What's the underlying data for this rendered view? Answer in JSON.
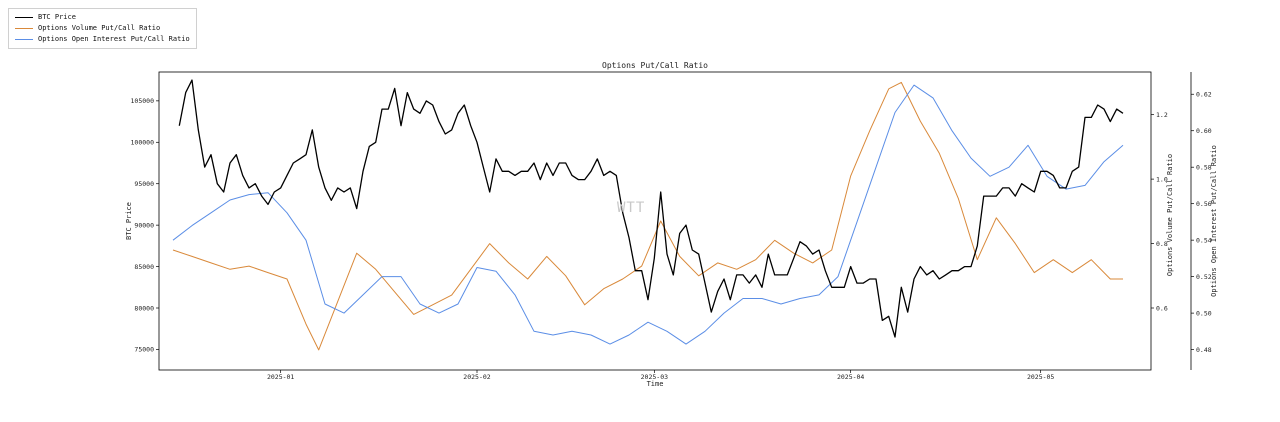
{
  "chart_data": {
    "type": "line",
    "title": "Options Put/Call Ratio",
    "xlabel": "Time",
    "x_ticks": [
      "2025-01",
      "2025-02",
      "2025-03",
      "2025-04",
      "2025-05"
    ],
    "x_range": [
      "2024-12-15",
      "2025-05-14"
    ],
    "watermark": "WTT",
    "legend": {
      "placement": "top-left outside",
      "entries": [
        "BTC Price",
        "Options Volume Put/Call Ratio",
        "Options Open Interest Put/Call Ratio"
      ]
    },
    "axes": {
      "left": {
        "label": "BTC Price",
        "ticks": [
          75000,
          80000,
          85000,
          90000,
          95000,
          100000,
          105000
        ],
        "range": [
          73000,
          108000
        ]
      },
      "right1": {
        "label": "Options Volume Put/Call Ratio",
        "ticks": [
          0.6,
          0.8,
          1.0,
          1.2
        ],
        "range": [
          0.42,
          1.32
        ]
      },
      "right2": {
        "label": "Options Open Interest Put/Call Ratio",
        "ticks": [
          "0.48",
          "0.50",
          "0.52",
          "0.54",
          "0.56",
          "0.58",
          "0.60",
          "0.62"
        ],
        "range": [
          0.471,
          0.63
        ]
      }
    },
    "series": [
      {
        "name": "BTC Price",
        "color": "#000000",
        "axis": "left",
        "points": [
          [
            "2024-12-16",
            102000
          ],
          [
            "2024-12-17",
            106000
          ],
          [
            "2024-12-18",
            107500
          ],
          [
            "2024-12-19",
            101500
          ],
          [
            "2024-12-20",
            97000
          ],
          [
            "2024-12-21",
            98500
          ],
          [
            "2024-12-22",
            95000
          ],
          [
            "2024-12-23",
            94000
          ],
          [
            "2024-12-24",
            97500
          ],
          [
            "2024-12-25",
            98500
          ],
          [
            "2024-12-26",
            96000
          ],
          [
            "2024-12-27",
            94500
          ],
          [
            "2024-12-28",
            95000
          ],
          [
            "2024-12-29",
            93500
          ],
          [
            "2024-12-30",
            92500
          ],
          [
            "2024-12-31",
            94000
          ],
          [
            "2025-01-01",
            94500
          ],
          [
            "2025-01-02",
            96000
          ],
          [
            "2025-01-03",
            97500
          ],
          [
            "2025-01-04",
            98000
          ],
          [
            "2025-01-05",
            98500
          ],
          [
            "2025-01-06",
            101500
          ],
          [
            "2025-01-07",
            97000
          ],
          [
            "2025-01-08",
            94500
          ],
          [
            "2025-01-09",
            93000
          ],
          [
            "2025-01-10",
            94500
          ],
          [
            "2025-01-11",
            94000
          ],
          [
            "2025-01-12",
            94500
          ],
          [
            "2025-01-13",
            92000
          ],
          [
            "2025-01-14",
            96500
          ],
          [
            "2025-01-15",
            99500
          ],
          [
            "2025-01-16",
            100000
          ],
          [
            "2025-01-17",
            104000
          ],
          [
            "2025-01-18",
            104000
          ],
          [
            "2025-01-19",
            106500
          ],
          [
            "2025-01-20",
            102000
          ],
          [
            "2025-01-21",
            106000
          ],
          [
            "2025-01-22",
            104000
          ],
          [
            "2025-01-23",
            103500
          ],
          [
            "2025-01-24",
            105000
          ],
          [
            "2025-01-25",
            104500
          ],
          [
            "2025-01-26",
            102500
          ],
          [
            "2025-01-27",
            101000
          ],
          [
            "2025-01-28",
            101500
          ],
          [
            "2025-01-29",
            103500
          ],
          [
            "2025-01-30",
            104500
          ],
          [
            "2025-01-31",
            102000
          ],
          [
            "2025-02-01",
            100000
          ],
          [
            "2025-02-02",
            97000
          ],
          [
            "2025-02-03",
            94000
          ],
          [
            "2025-02-04",
            98000
          ],
          [
            "2025-02-05",
            96500
          ],
          [
            "2025-02-06",
            96500
          ],
          [
            "2025-02-07",
            96000
          ],
          [
            "2025-02-08",
            96500
          ],
          [
            "2025-02-09",
            96500
          ],
          [
            "2025-02-10",
            97500
          ],
          [
            "2025-02-11",
            95500
          ],
          [
            "2025-02-12",
            97500
          ],
          [
            "2025-02-13",
            96000
          ],
          [
            "2025-02-14",
            97500
          ],
          [
            "2025-02-15",
            97500
          ],
          [
            "2025-02-16",
            96000
          ],
          [
            "2025-02-17",
            95500
          ],
          [
            "2025-02-18",
            95500
          ],
          [
            "2025-02-19",
            96500
          ],
          [
            "2025-02-20",
            98000
          ],
          [
            "2025-02-21",
            96000
          ],
          [
            "2025-02-22",
            96500
          ],
          [
            "2025-02-23",
            96000
          ],
          [
            "2025-02-24",
            91500
          ],
          [
            "2025-02-25",
            88500
          ],
          [
            "2025-02-26",
            84500
          ],
          [
            "2025-02-27",
            84500
          ],
          [
            "2025-02-28",
            81000
          ],
          [
            "2025-03-01",
            86000
          ],
          [
            "2025-03-02",
            94000
          ],
          [
            "2025-03-03",
            86500
          ],
          [
            "2025-03-04",
            84000
          ],
          [
            "2025-03-05",
            89000
          ],
          [
            "2025-03-06",
            90000
          ],
          [
            "2025-03-07",
            87000
          ],
          [
            "2025-03-08",
            86500
          ],
          [
            "2025-03-09",
            83000
          ],
          [
            "2025-03-10",
            79500
          ],
          [
            "2025-03-11",
            82000
          ],
          [
            "2025-03-12",
            83500
          ],
          [
            "2025-03-13",
            81000
          ],
          [
            "2025-03-14",
            84000
          ],
          [
            "2025-03-15",
            84000
          ],
          [
            "2025-03-16",
            83000
          ],
          [
            "2025-03-17",
            84000
          ],
          [
            "2025-03-18",
            82500
          ],
          [
            "2025-03-19",
            86500
          ],
          [
            "2025-03-20",
            84000
          ],
          [
            "2025-03-21",
            84000
          ],
          [
            "2025-03-22",
            84000
          ],
          [
            "2025-03-23",
            86000
          ],
          [
            "2025-03-24",
            88000
          ],
          [
            "2025-03-25",
            87500
          ],
          [
            "2025-03-26",
            86500
          ],
          [
            "2025-03-27",
            87000
          ],
          [
            "2025-03-28",
            84500
          ],
          [
            "2025-03-29",
            82500
          ],
          [
            "2025-03-30",
            82500
          ],
          [
            "2025-03-31",
            82500
          ],
          [
            "2025-04-01",
            85000
          ],
          [
            "2025-04-02",
            83000
          ],
          [
            "2025-04-03",
            83000
          ],
          [
            "2025-04-04",
            83500
          ],
          [
            "2025-04-05",
            83500
          ],
          [
            "2025-04-06",
            78500
          ],
          [
            "2025-04-07",
            79000
          ],
          [
            "2025-04-08",
            76500
          ],
          [
            "2025-04-09",
            82500
          ],
          [
            "2025-04-10",
            79500
          ],
          [
            "2025-04-11",
            83500
          ],
          [
            "2025-04-12",
            85000
          ],
          [
            "2025-04-13",
            84000
          ],
          [
            "2025-04-14",
            84500
          ],
          [
            "2025-04-15",
            83500
          ],
          [
            "2025-04-16",
            84000
          ],
          [
            "2025-04-17",
            84500
          ],
          [
            "2025-04-18",
            84500
          ],
          [
            "2025-04-19",
            85000
          ],
          [
            "2025-04-20",
            85000
          ],
          [
            "2025-04-21",
            87500
          ],
          [
            "2025-04-22",
            93500
          ],
          [
            "2025-04-23",
            93500
          ],
          [
            "2025-04-24",
            93500
          ],
          [
            "2025-04-25",
            94500
          ],
          [
            "2025-04-26",
            94500
          ],
          [
            "2025-04-27",
            93500
          ],
          [
            "2025-04-28",
            95000
          ],
          [
            "2025-04-29",
            94500
          ],
          [
            "2025-04-30",
            94000
          ],
          [
            "2025-05-01",
            96500
          ],
          [
            "2025-05-02",
            96500
          ],
          [
            "2025-05-03",
            96000
          ],
          [
            "2025-05-04",
            94500
          ],
          [
            "2025-05-05",
            94500
          ],
          [
            "2025-05-06",
            96500
          ],
          [
            "2025-05-07",
            97000
          ],
          [
            "2025-05-08",
            103000
          ],
          [
            "2025-05-09",
            103000
          ],
          [
            "2025-05-10",
            104500
          ],
          [
            "2025-05-11",
            104000
          ],
          [
            "2025-05-12",
            102500
          ],
          [
            "2025-05-13",
            104000
          ],
          [
            "2025-05-14",
            103500
          ]
        ]
      },
      {
        "name": "Options Volume Put/Call Ratio",
        "color": "#d9893a",
        "axis": "right1",
        "points": [
          [
            "2024-12-15",
            0.78
          ],
          [
            "2024-12-18",
            0.76
          ],
          [
            "2024-12-21",
            0.74
          ],
          [
            "2024-12-24",
            0.72
          ],
          [
            "2024-12-27",
            0.73
          ],
          [
            "2024-12-30",
            0.71
          ],
          [
            "2025-01-02",
            0.69
          ],
          [
            "2025-01-05",
            0.55
          ],
          [
            "2025-01-07",
            0.47
          ],
          [
            "2025-01-10",
            0.62
          ],
          [
            "2025-01-13",
            0.77
          ],
          [
            "2025-01-16",
            0.72
          ],
          [
            "2025-01-19",
            0.65
          ],
          [
            "2025-01-22",
            0.58
          ],
          [
            "2025-01-25",
            0.61
          ],
          [
            "2025-01-28",
            0.64
          ],
          [
            "2025-01-31",
            0.72
          ],
          [
            "2025-02-03",
            0.8
          ],
          [
            "2025-02-06",
            0.74
          ],
          [
            "2025-02-09",
            0.69
          ],
          [
            "2025-02-12",
            0.76
          ],
          [
            "2025-02-15",
            0.7
          ],
          [
            "2025-02-18",
            0.61
          ],
          [
            "2025-02-21",
            0.66
          ],
          [
            "2025-02-24",
            0.69
          ],
          [
            "2025-02-27",
            0.73
          ],
          [
            "2025-03-02",
            0.87
          ],
          [
            "2025-03-05",
            0.76
          ],
          [
            "2025-03-08",
            0.7
          ],
          [
            "2025-03-11",
            0.74
          ],
          [
            "2025-03-14",
            0.72
          ],
          [
            "2025-03-17",
            0.75
          ],
          [
            "2025-03-20",
            0.81
          ],
          [
            "2025-03-23",
            0.77
          ],
          [
            "2025-03-26",
            0.74
          ],
          [
            "2025-03-29",
            0.78
          ],
          [
            "2025-04-01",
            1.01
          ],
          [
            "2025-04-04",
            1.15
          ],
          [
            "2025-04-07",
            1.28
          ],
          [
            "2025-04-09",
            1.3
          ],
          [
            "2025-04-12",
            1.18
          ],
          [
            "2025-04-15",
            1.08
          ],
          [
            "2025-04-18",
            0.94
          ],
          [
            "2025-04-21",
            0.75
          ],
          [
            "2025-04-24",
            0.88
          ],
          [
            "2025-04-27",
            0.8
          ],
          [
            "2025-04-30",
            0.71
          ],
          [
            "2025-05-03",
            0.75
          ],
          [
            "2025-05-06",
            0.71
          ],
          [
            "2025-05-09",
            0.75
          ],
          [
            "2025-05-12",
            0.69
          ],
          [
            "2025-05-14",
            0.69
          ]
        ]
      },
      {
        "name": "Options Open Interest Put/Call Ratio",
        "color": "#5b8ee6",
        "axis": "right2",
        "points": [
          [
            "2024-12-15",
            0.54
          ],
          [
            "2024-12-18",
            0.548
          ],
          [
            "2024-12-21",
            0.555
          ],
          [
            "2024-12-24",
            0.562
          ],
          [
            "2024-12-27",
            0.565
          ],
          [
            "2024-12-30",
            0.566
          ],
          [
            "2025-01-02",
            0.555
          ],
          [
            "2025-01-05",
            0.54
          ],
          [
            "2025-01-08",
            0.505
          ],
          [
            "2025-01-11",
            0.5
          ],
          [
            "2025-01-14",
            0.51
          ],
          [
            "2025-01-17",
            0.52
          ],
          [
            "2025-01-20",
            0.52
          ],
          [
            "2025-01-23",
            0.505
          ],
          [
            "2025-01-26",
            0.5
          ],
          [
            "2025-01-29",
            0.505
          ],
          [
            "2025-02-01",
            0.525
          ],
          [
            "2025-02-04",
            0.523
          ],
          [
            "2025-02-07",
            0.51
          ],
          [
            "2025-02-10",
            0.49
          ],
          [
            "2025-02-13",
            0.488
          ],
          [
            "2025-02-16",
            0.49
          ],
          [
            "2025-02-19",
            0.488
          ],
          [
            "2025-02-22",
            0.483
          ],
          [
            "2025-02-25",
            0.488
          ],
          [
            "2025-02-28",
            0.495
          ],
          [
            "2025-03-03",
            0.49
          ],
          [
            "2025-03-06",
            0.483
          ],
          [
            "2025-03-09",
            0.49
          ],
          [
            "2025-03-12",
            0.5
          ],
          [
            "2025-03-15",
            0.508
          ],
          [
            "2025-03-18",
            0.508
          ],
          [
            "2025-03-21",
            0.505
          ],
          [
            "2025-03-24",
            0.508
          ],
          [
            "2025-03-27",
            0.51
          ],
          [
            "2025-03-30",
            0.52
          ],
          [
            "2025-04-02",
            0.55
          ],
          [
            "2025-04-05",
            0.58
          ],
          [
            "2025-04-08",
            0.61
          ],
          [
            "2025-04-11",
            0.625
          ],
          [
            "2025-04-14",
            0.618
          ],
          [
            "2025-04-17",
            0.6
          ],
          [
            "2025-04-20",
            0.585
          ],
          [
            "2025-04-23",
            0.575
          ],
          [
            "2025-04-26",
            0.58
          ],
          [
            "2025-04-29",
            0.592
          ],
          [
            "2025-05-02",
            0.575
          ],
          [
            "2025-05-05",
            0.568
          ],
          [
            "2025-05-08",
            0.57
          ],
          [
            "2025-05-11",
            0.583
          ],
          [
            "2025-05-14",
            0.592
          ]
        ]
      }
    ]
  }
}
